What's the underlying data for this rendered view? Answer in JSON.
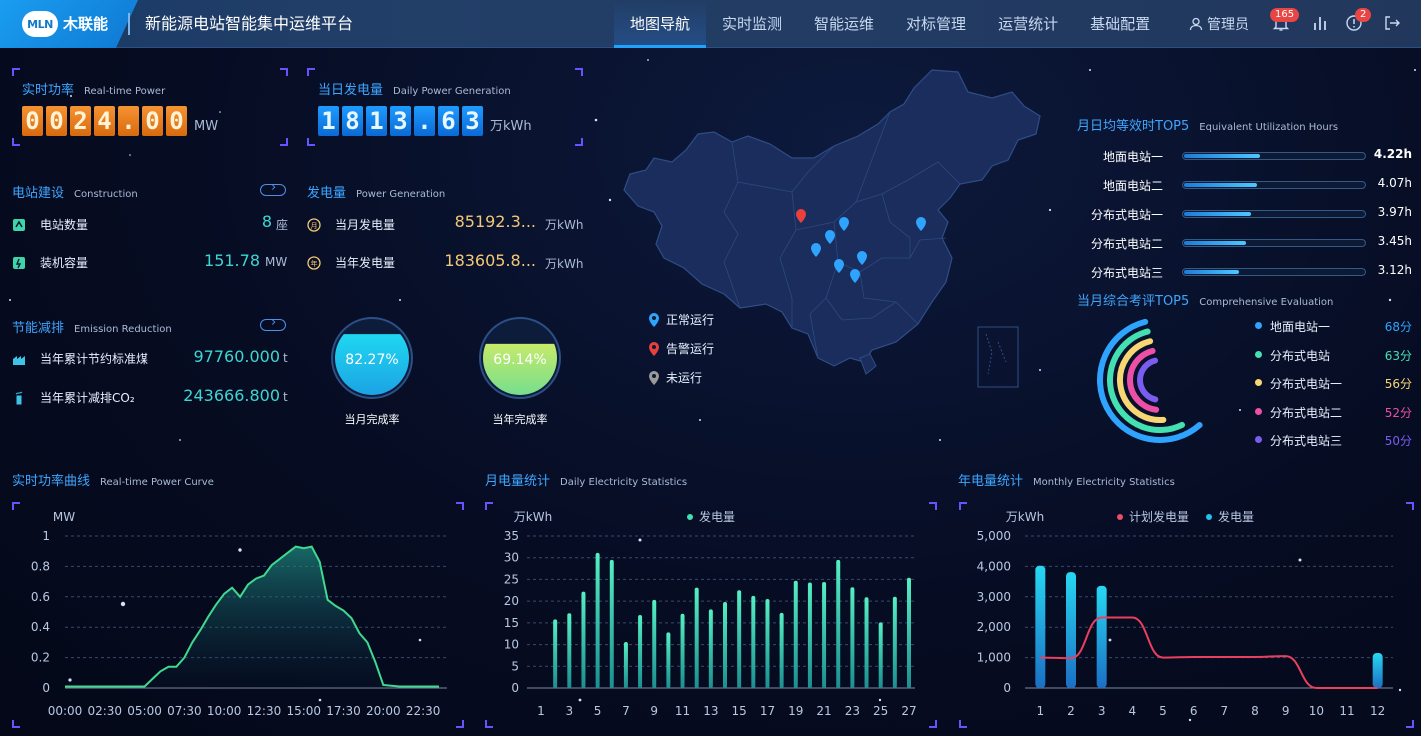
{
  "header": {
    "logo_badge": "MLN",
    "logo_text": "木联能",
    "title": "新能源电站智能集中运维平台",
    "nav": [
      "地图导航",
      "实时监测",
      "智能运维",
      "对标管理",
      "运营统计",
      "基础配置"
    ],
    "active_nav": 0,
    "user": "管理员",
    "alarm_count": "165",
    "notice_count": "2"
  },
  "realtime_power": {
    "title": "实时功率",
    "subtitle": "Real-time Power",
    "digits": [
      "0",
      "0",
      "2",
      "4",
      ".",
      "0",
      "0"
    ],
    "unit": "MW"
  },
  "daily_gen": {
    "title": "当日发电量",
    "subtitle": "Daily Power Generation",
    "digits": [
      "1",
      "8",
      "1",
      "3",
      ".",
      "6",
      "3"
    ],
    "unit": "万kWh"
  },
  "construction": {
    "title": "电站建设",
    "subtitle": "Construction",
    "items": [
      {
        "label": "电站数量",
        "value": "8",
        "unit": "座"
      },
      {
        "label": "装机容量",
        "value": "151.78",
        "unit": "MW"
      }
    ]
  },
  "power_generation": {
    "title": "发电量",
    "subtitle": "Power Generation",
    "items": [
      {
        "label": "当月发电量",
        "value": "85192.3...",
        "unit": "万kWh"
      },
      {
        "label": "当年发电量",
        "value": "183605.8...",
        "unit": "万kWh"
      }
    ]
  },
  "emission": {
    "title": "节能减排",
    "subtitle": "Emission Reduction",
    "items": [
      {
        "label": "当年累计节约标准煤",
        "value": "97760.000",
        "unit": "t"
      },
      {
        "label": "当年累计减排CO₂",
        "value": "243666.800",
        "unit": "t"
      }
    ]
  },
  "completion": {
    "month": {
      "value": "82.27%",
      "fraction": 0.8227,
      "label": "当月完成率"
    },
    "year": {
      "value": "69.14%",
      "fraction": 0.6914,
      "label": "当年完成率"
    }
  },
  "map_legend": [
    {
      "label": "正常运行",
      "color": "#2ea4ff"
    },
    {
      "label": "告警运行",
      "color": "#e8403c"
    },
    {
      "label": "未运行",
      "color": "#9a9a9a"
    }
  ],
  "top5_hours": {
    "title": "月日均等效时TOP5",
    "subtitle": "Equivalent Utilization Hours",
    "items": [
      {
        "name": "地面电站一",
        "value": "4.22h",
        "ratio": 0.42
      },
      {
        "name": "地面电站二",
        "value": "4.07h",
        "ratio": 0.4
      },
      {
        "name": "分布式电站一",
        "value": "3.97h",
        "ratio": 0.37
      },
      {
        "name": "分布式电站二",
        "value": "3.45h",
        "ratio": 0.34
      },
      {
        "name": "分布式电站三",
        "value": "3.12h",
        "ratio": 0.3
      }
    ]
  },
  "top5_eval": {
    "title": "当月综合考评TOP5",
    "subtitle": "Comprehensive Evaluation",
    "items": [
      {
        "name": "地面电站一",
        "value": "68分",
        "score": 68,
        "color": "#2ea4ff"
      },
      {
        "name": "分布式电站",
        "value": "63分",
        "score": 63,
        "color": "#45e0b2"
      },
      {
        "name": "分布式电站一",
        "value": "56分",
        "score": 56,
        "color": "#f7d774"
      },
      {
        "name": "分布式电站二",
        "value": "52分",
        "score": 52,
        "color": "#ec4fa6"
      },
      {
        "name": "分布式电站三",
        "value": "50分",
        "score": 50,
        "color": "#7a5cf0"
      }
    ]
  },
  "power_curve": {
    "title": "实时功率曲线",
    "subtitle": "Real-time Power Curve"
  },
  "daily_stats": {
    "title": "月电量统计",
    "subtitle": "Daily Electricity Statistics"
  },
  "monthly_stats": {
    "title": "年电量统计",
    "subtitle": "Monthly Electricity Statistics"
  },
  "chart_data": [
    {
      "type": "area",
      "ylabel": "MW",
      "ylim": [
        0,
        1
      ],
      "yticks": [
        "0",
        "0.2",
        "0.4",
        "0.6",
        "0.8",
        "1"
      ],
      "xticks": [
        "00:00",
        "02:30",
        "05:00",
        "07:30",
        "10:00",
        "12:30",
        "15:00",
        "17:30",
        "20:00",
        "22:30"
      ],
      "x_hours": [
        0,
        5,
        5.5,
        6,
        6.5,
        7,
        7.5,
        8,
        8.5,
        9,
        9.5,
        10,
        10.5,
        11,
        11.5,
        12,
        12.5,
        13,
        13.5,
        14,
        14.5,
        15,
        15.5,
        16,
        16.5,
        17,
        17.5,
        18,
        18.5,
        19,
        19.5,
        20,
        21,
        23.5
      ],
      "values": [
        0.01,
        0.01,
        0.06,
        0.11,
        0.14,
        0.14,
        0.2,
        0.3,
        0.38,
        0.47,
        0.55,
        0.62,
        0.66,
        0.6,
        0.68,
        0.72,
        0.74,
        0.81,
        0.85,
        0.89,
        0.93,
        0.92,
        0.93,
        0.83,
        0.58,
        0.54,
        0.51,
        0.46,
        0.36,
        0.3,
        0.17,
        0.02,
        0.01,
        0.01
      ],
      "grid": true
    },
    {
      "type": "bar",
      "ylabel": "万kWh",
      "legend": [
        "发电量"
      ],
      "ylim": [
        0,
        35
      ],
      "yticks": [
        "0",
        "5",
        "10",
        "15",
        "20",
        "25",
        "30",
        "35"
      ],
      "categories": [
        "1",
        "2",
        "3",
        "4",
        "5",
        "6",
        "7",
        "8",
        "9",
        "10",
        "11",
        "12",
        "13",
        "14",
        "15",
        "16",
        "17",
        "18",
        "19",
        "20",
        "21",
        "22",
        "23",
        "24",
        "25",
        "26",
        "27"
      ],
      "xticks": [
        "1",
        "3",
        "5",
        "7",
        "9",
        "11",
        "13",
        "15",
        "17",
        "19",
        "21",
        "23",
        "25",
        "27"
      ],
      "series": [
        {
          "name": "发电量",
          "values": [
            0,
            15.8,
            17.2,
            22.2,
            31.1,
            29.5,
            10.6,
            16.8,
            20.3,
            12.8,
            17.1,
            23.1,
            18.1,
            19.8,
            22.5,
            21.2,
            20.5,
            17.3,
            24.7,
            24.3,
            24.4,
            29.5,
            23.2,
            20.9,
            15.1,
            21.0,
            25.4
          ]
        }
      ],
      "grid": true
    },
    {
      "type": "bar",
      "ylabel": "万kWh",
      "legend": [
        "计划发电量",
        "发电量"
      ],
      "ylim": [
        0,
        5000
      ],
      "yticks": [
        "0",
        "1,000",
        "2,000",
        "3,000",
        "4,000",
        "5,000"
      ],
      "categories": [
        "1",
        "2",
        "3",
        "4",
        "5",
        "6",
        "7",
        "8",
        "9",
        "10",
        "11",
        "12"
      ],
      "series": [
        {
          "name": "发电量",
          "values": [
            4020,
            3810,
            3360,
            0,
            0,
            0,
            0,
            0,
            0,
            0,
            0,
            1150
          ]
        },
        {
          "name": "计划发电量",
          "values": [
            1000,
            980,
            2320,
            2320,
            1000,
            1020,
            1020,
            1020,
            1050,
            0,
            0,
            0
          ]
        }
      ],
      "grid": true
    }
  ]
}
